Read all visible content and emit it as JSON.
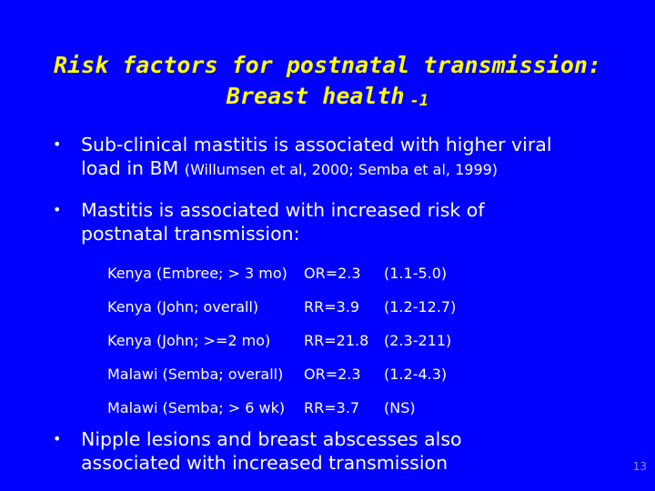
{
  "slide": {
    "title_line1": "Risk factors for postnatal transmission:",
    "title_line2": "Breast health",
    "title_suffix": "-1",
    "bullets": [
      {
        "line1": "Sub-clinical mastitis is associated with higher viral",
        "line2_main": "load in BM",
        "line2_cite": "(Willumsen et al, 2000; Semba et al, 1999)"
      },
      {
        "line1": "Mastitis is associated with increased risk of",
        "line2": "postnatal transmission:"
      },
      {
        "line1": "Nipple lesions and breast abscesses also",
        "line2": "associated with increased transmission"
      }
    ],
    "results": [
      {
        "study": "Kenya (Embree; > 3 mo)",
        "stat": "OR=2.3",
        "ci": "(1.1-5.0)"
      },
      {
        "study": "Kenya (John; overall)",
        "stat": "RR=3.9",
        "ci": "(1.2-12.7)"
      },
      {
        "study": "Kenya (John; >=2 mo)",
        "stat": "RR=21.8",
        "ci": "(2.3-211)"
      },
      {
        "study": "Malawi (Semba; overall)",
        "stat": "OR=2.3",
        "ci": "(1.2-4.3)"
      },
      {
        "study": "Malawi (Semba; > 6 wk)",
        "stat": "RR=3.7",
        "ci": "(NS)"
      }
    ],
    "bullet_char": "•",
    "page_number": "13"
  }
}
